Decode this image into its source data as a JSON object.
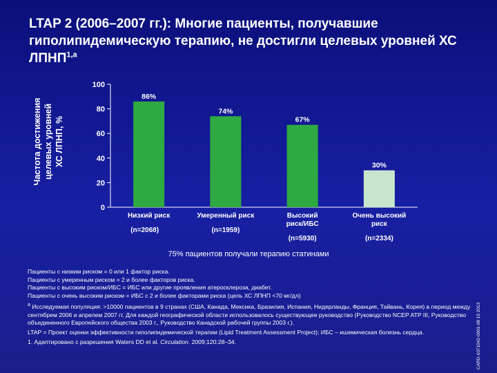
{
  "title": "LTAP 2 (2006–2007 гг.): Многие пациенты, получавшие гиполипидемическую терапию, не достигли целевых уровней ХС ЛПНП",
  "title_sup": "1,a",
  "chart_data": {
    "type": "bar",
    "ylabel_lines": [
      "Частота достижения",
      "целевых уровней",
      "ХС ЛПНП, %"
    ],
    "ylim": [
      0,
      100
    ],
    "yticks": [
      0,
      20,
      40,
      60,
      80,
      100
    ],
    "categories": [
      {
        "lines": [
          "Низкий риск"
        ],
        "n": "(n=2068)"
      },
      {
        "lines": [
          "Умеренный риск"
        ],
        "n": "(n=1959)"
      },
      {
        "lines": [
          "Высокий",
          "риск/ИБС"
        ],
        "n": "(n=5930)"
      },
      {
        "lines": [
          "Очень высокий",
          "риск"
        ],
        "n": "(n=2334)"
      }
    ],
    "values": [
      86,
      74,
      67,
      30
    ],
    "value_labels": [
      "86%",
      "74%",
      "67%",
      "30%"
    ],
    "bar_colors": [
      "#2faa43",
      "#2faa43",
      "#2faa43",
      "#c8e6ce"
    ],
    "grid": false
  },
  "statin_note": "75% пациентов получали терапию статинами",
  "footnotes": {
    "lines": [
      "Пациенты с низким риском = 0 или 1 фактор риска.",
      "Пациенты с умеренным риском = 2 и более факторов риска.",
      "Пациенты с высоким риском/ИБС = ИБС или другие проявления атеросклероза, диабет.",
      "Пациенты с очень высоким риском = ИБС с 2 и более факторами риска (цель ХС ЛПНП <70 мг/дл)"
    ],
    "a_marker": "a",
    "a_text": "Исследуемая популяция: >10000 пациентов в 9 странах (США, Канада, Мексика, Бразилия, Испания, Нидерланды, Франция, Тайвань, Корея) в период между сентябрем 2006 и апрелем 2007 гг. Для каждой географической области использовалось существующее руководство (Руководство NCEP ATP III, Руководство объединенного Европейского общества 2003 г., Руководство Канадской рабочей группы 2003 г.).",
    "ltap": "LTAP = Проект оценки эффективности гиполипидемической терапии (Lipid Treatment Assessment Project); ИБС – ишемическая болезнь сердца.",
    "ref_prefix": "1. Адаптировано с разрешения Waters DD et al. ",
    "ref_journal": "Circulation",
    "ref_suffix": ". 2009;120:28–34."
  },
  "side_code": "CARD-1071042-0001-08 15 2013"
}
